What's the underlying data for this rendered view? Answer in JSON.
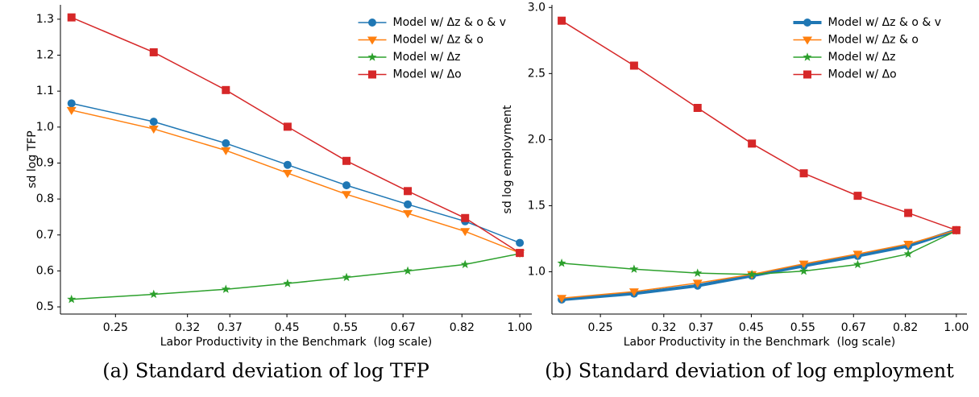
{
  "chart_data": [
    {
      "type": "line",
      "caption": "(a) Standard deviation of log TFP",
      "xlabel": "Labor Productivity in the Benchmark  (log scale)",
      "ylabel": "sd log TFP",
      "xscale": "log",
      "legend": "upper right",
      "x": [
        0.215,
        0.285,
        0.365,
        0.451,
        0.552,
        0.681,
        0.829,
        1.0
      ],
      "xlim": [
        0.207,
        1.042
      ],
      "xticks": [
        0.25,
        0.32,
        0.37,
        0.45,
        0.55,
        0.67,
        0.82,
        {
          "value": 1,
          "label": "1.00"
        }
      ],
      "ylim": [
        0.48,
        1.34
      ],
      "yticks": [
        0.5,
        0.6,
        0.7,
        0.8,
        0.9,
        {
          "value": 1,
          "label": "1.0"
        },
        1.1,
        1.2,
        1.3
      ],
      "series": [
        {
          "name": "Model w/ Δz & o & v",
          "color": "#1f77b4",
          "marker": "circle",
          "linewidth": 1.5,
          "values": [
            1.066,
            1.015,
            0.955,
            0.895,
            0.838,
            0.785,
            0.738,
            0.678
          ]
        },
        {
          "name": "Model w/ Δz & o",
          "color": "#ff7f0e",
          "marker": "triangle-down",
          "linewidth": 1.5,
          "values": [
            1.047,
            0.995,
            0.935,
            0.872,
            0.813,
            0.76,
            0.71,
            0.65
          ]
        },
        {
          "name": "Model w/ Δz",
          "color": "#2ca02c",
          "marker": "star",
          "linewidth": 1.5,
          "values": [
            0.521,
            0.535,
            0.549,
            0.565,
            0.582,
            0.6,
            0.618,
            0.648
          ]
        },
        {
          "name": "Model w/ Δo",
          "color": "#d62728",
          "marker": "square",
          "linewidth": 1.5,
          "values": [
            1.305,
            1.208,
            1.103,
            1.001,
            0.906,
            0.822,
            0.747,
            0.65
          ]
        }
      ]
    },
    {
      "type": "line",
      "caption": "(b) Standard deviation of log employment",
      "xlabel": "Labor Productivity in the Benchmark  (log scale)",
      "ylabel": "sd log employment",
      "xscale": "log",
      "legend": "upper right",
      "x": [
        0.215,
        0.285,
        0.365,
        0.451,
        0.552,
        0.681,
        0.829,
        1.0
      ],
      "xlim": [
        0.207,
        1.042
      ],
      "xticks": [
        0.25,
        0.32,
        0.37,
        0.45,
        0.55,
        0.67,
        0.82,
        {
          "value": 1,
          "label": "1.00"
        }
      ],
      "ylim": [
        0.68,
        3.02
      ],
      "yticks": [
        {
          "value": 1,
          "label": "1.0"
        },
        1.5,
        {
          "value": 2,
          "label": "2.0"
        },
        2.5,
        {
          "value": 3,
          "label": "3.0"
        }
      ],
      "series": [
        {
          "name": "Model w/ Δz & o & v",
          "color": "#1f77b4",
          "marker": "circle",
          "linewidth": 4,
          "values": [
            0.79,
            0.835,
            0.895,
            0.97,
            1.045,
            1.12,
            1.195,
            1.315
          ]
        },
        {
          "name": "Model w/ Δz & o",
          "color": "#ff7f0e",
          "marker": "triangle-down",
          "linewidth": 1.5,
          "values": [
            0.8,
            0.85,
            0.915,
            0.98,
            1.06,
            1.135,
            1.21,
            1.315
          ]
        },
        {
          "name": "Model w/ Δz",
          "color": "#2ca02c",
          "marker": "star",
          "linewidth": 1.5,
          "values": [
            1.065,
            1.02,
            0.99,
            0.98,
            1.005,
            1.055,
            1.135,
            1.31
          ]
        },
        {
          "name": "Model w/ Δo",
          "color": "#d62728",
          "marker": "square",
          "linewidth": 1.5,
          "values": [
            2.9,
            2.56,
            2.24,
            1.97,
            1.745,
            1.575,
            1.445,
            1.315
          ]
        }
      ]
    }
  ]
}
